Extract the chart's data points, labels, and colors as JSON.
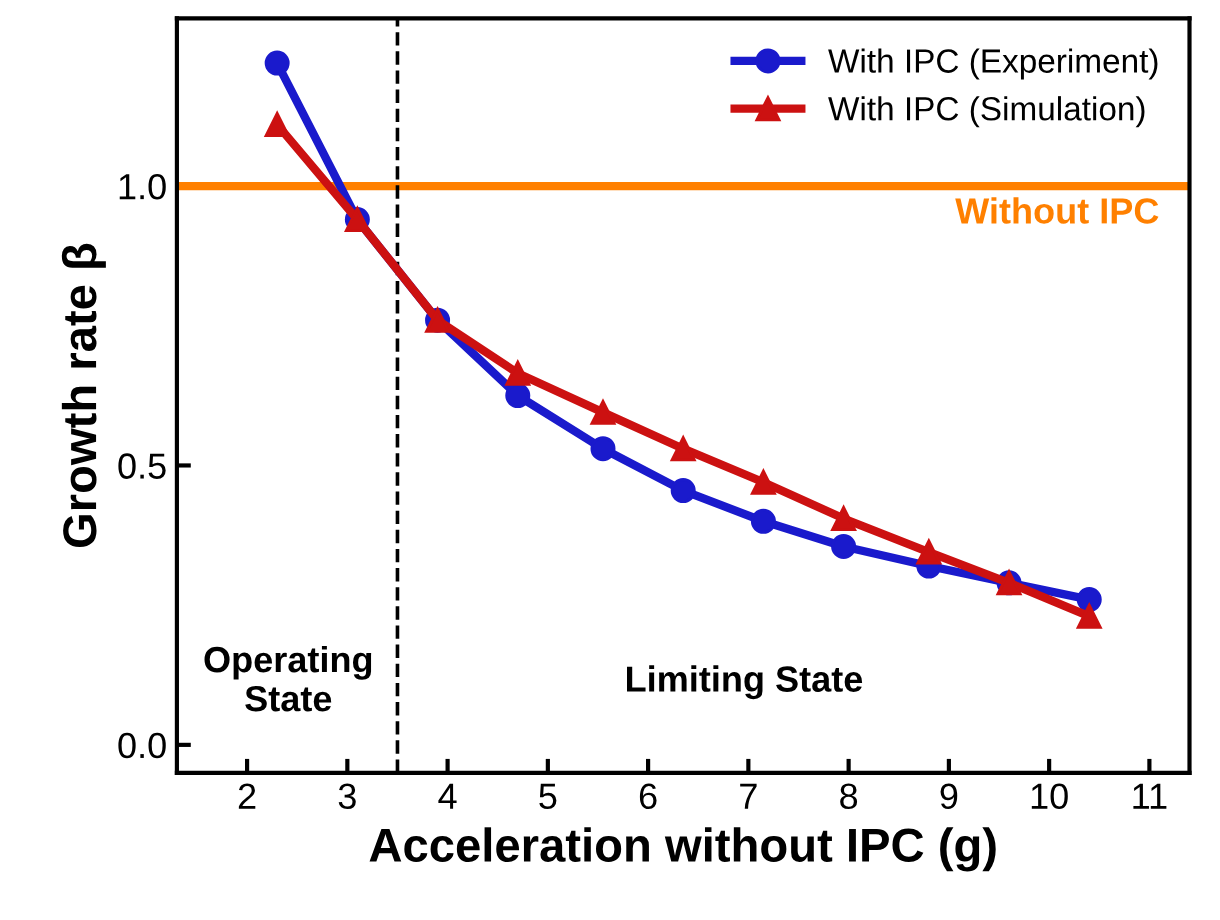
{
  "chart_data": {
    "type": "line",
    "xlabel": "Acceleration without IPC (g)",
    "ylabel": "Growth rate β",
    "xlim": [
      1.3,
      11.4
    ],
    "ylim": [
      -0.05,
      1.3
    ],
    "xticks": [
      2,
      3,
      4,
      5,
      6,
      7,
      8,
      9,
      10,
      11
    ],
    "yticks": [
      {
        "value": 0,
        "label": "0.0"
      },
      0.5,
      {
        "value": 1,
        "label": "1.0"
      }
    ],
    "x": [
      2.3,
      3.1,
      3.9,
      4.7,
      5.55,
      6.35,
      7.15,
      7.95,
      8.8,
      9.6,
      10.4
    ],
    "series": [
      {
        "name": "With IPC (Experiment)",
        "color": "#1a1acc",
        "marker": "circle",
        "values": [
          1.22,
          0.94,
          0.76,
          0.625,
          0.53,
          0.455,
          0.4,
          0.355,
          0.32,
          0.29,
          0.26
        ]
      },
      {
        "name": "With IPC (Simulation)",
        "color": "#cc1111",
        "marker": "triangle",
        "values": [
          1.11,
          0.94,
          0.76,
          0.665,
          0.595,
          0.53,
          0.47,
          0.405,
          0.345,
          0.29,
          0.23
        ]
      }
    ],
    "ref_lines": [
      {
        "axis": "y",
        "value": 1.0,
        "label": "Without IPC",
        "color": "#ff8000",
        "line_style": "solid"
      },
      {
        "axis": "x",
        "value": 3.5,
        "label": null,
        "color": "#000000",
        "line_style": "dashed"
      }
    ],
    "annotations": [
      "Operating\nState",
      "Limiting State"
    ],
    "legend": "top right",
    "grid": false
  }
}
